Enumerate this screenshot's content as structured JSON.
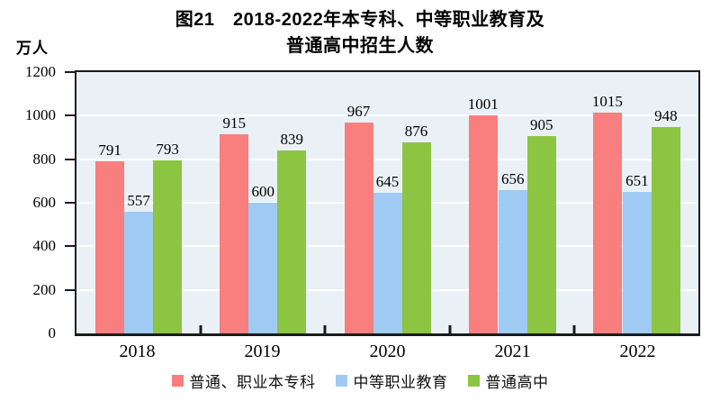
{
  "figure": {
    "title_line1": "图21　2018-2022年本专科、中等职业教育及",
    "title_line2": "普通高中招生人数",
    "y_unit": "万人"
  },
  "chart_data": {
    "type": "bar",
    "title": "图21 2018-2022年本专科、中等职业教育及普通高中招生人数",
    "xlabel": "",
    "ylabel": "万人",
    "ylim": [
      0,
      1200
    ],
    "y_ticks": [
      0,
      200,
      400,
      600,
      800,
      1000,
      1200
    ],
    "categories": [
      "2018",
      "2019",
      "2020",
      "2021",
      "2022"
    ],
    "series": [
      {
        "name": "普通、职业本专科",
        "color": "#f97e7e",
        "values": [
          791,
          915,
          967,
          1001,
          1015
        ]
      },
      {
        "name": "中等职业教育",
        "color": "#9ecaf3",
        "values": [
          557,
          600,
          645,
          656,
          651
        ]
      },
      {
        "name": "普通高中",
        "color": "#8cc542",
        "values": [
          793,
          839,
          876,
          905,
          948
        ]
      }
    ],
    "legend_position": "bottom",
    "grid": true,
    "data_labels": true,
    "plot_background": "#e9f1f6",
    "gridline_color": "#ffffff",
    "axis_color": "#1b1b1b"
  }
}
